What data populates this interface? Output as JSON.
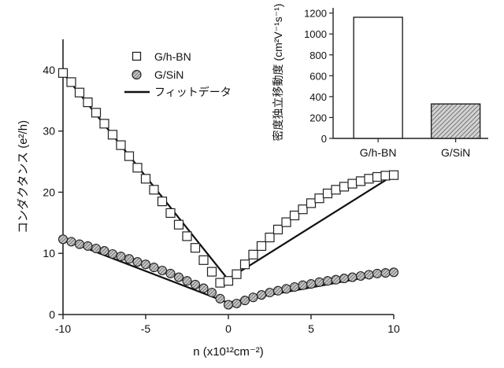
{
  "chart_data": [
    {
      "type": "line",
      "xlabel": "n (x10¹²cm⁻²)",
      "ylabel": "コンダクタンス (e²/h)",
      "xlim": [
        -10,
        10
      ],
      "ylim": [
        0,
        45
      ],
      "x_ticks": [
        -10,
        -5,
        0,
        5,
        10
      ],
      "y_ticks": [
        0,
        10,
        20,
        30,
        40
      ],
      "grid": false,
      "legend_placement": "top-left",
      "x": [
        -10,
        -9.5,
        -9,
        -8.5,
        -8,
        -7.5,
        -7,
        -6.5,
        -6,
        -5.5,
        -5,
        -4.5,
        -4,
        -3.5,
        -3,
        -2.5,
        -2,
        -1.5,
        -1,
        -0.5,
        0,
        0.5,
        1,
        1.5,
        2,
        2.5,
        3,
        3.5,
        4,
        4.5,
        5,
        5.5,
        6,
        6.5,
        7,
        7.5,
        8,
        8.5,
        9,
        9.5,
        10
      ],
      "series": [
        {
          "name": "G/h-BN",
          "marker": "open-square",
          "values": [
            39.5,
            38.0,
            36.3,
            34.7,
            33.0,
            31.2,
            29.4,
            27.7,
            25.9,
            24.0,
            22.2,
            20.4,
            18.5,
            16.6,
            14.7,
            12.8,
            10.9,
            8.9,
            7.0,
            5.2,
            5.5,
            6.6,
            8.2,
            9.8,
            11.2,
            12.6,
            13.9,
            15.1,
            16.2,
            17.2,
            18.2,
            19.0,
            19.8,
            20.4,
            20.9,
            21.4,
            21.8,
            22.2,
            22.5,
            22.7,
            22.8
          ]
        },
        {
          "name": "G/SiN",
          "marker": "hatched-circle",
          "values": [
            12.3,
            11.9,
            11.5,
            11.2,
            10.8,
            10.4,
            9.9,
            9.5,
            9.1,
            8.6,
            8.2,
            7.7,
            7.2,
            6.7,
            6.1,
            5.5,
            4.9,
            4.3,
            3.6,
            2.6,
            1.6,
            1.8,
            2.3,
            2.8,
            3.2,
            3.6,
            3.9,
            4.2,
            4.5,
            4.8,
            5.0,
            5.3,
            5.5,
            5.7,
            5.9,
            6.1,
            6.3,
            6.5,
            6.7,
            6.8,
            6.9
          ]
        },
        {
          "name": "フィットデータ",
          "marker": "line",
          "fits": [
            {
              "x": [
                -10,
                -0.1,
                0,
                0.1,
                10
              ],
              "values": [
                39.5,
                6.0,
                5.6,
                6.0,
                22.8
              ]
            },
            {
              "x": [
                -10,
                -0.1,
                0,
                0.1,
                10
              ],
              "values": [
                12.3,
                2.0,
                1.6,
                2.0,
                6.9
              ]
            }
          ]
        }
      ]
    },
    {
      "type": "bar",
      "ylabel": "密度独立移動度 (cm²V⁻¹s⁻¹)",
      "categories": [
        "G/h-BN",
        "G/SiN"
      ],
      "values": [
        1160,
        330
      ],
      "ylim": [
        0,
        1250
      ],
      "y_ticks": [
        0,
        200,
        400,
        600,
        800,
        1000,
        1200
      ],
      "bar_fills": [
        "open",
        "hatched"
      ]
    }
  ],
  "colors": {
    "axis": "#222222",
    "marker_fill": "#ffffff",
    "hatch_fill": "#bbbbbb",
    "line": "#111111"
  }
}
